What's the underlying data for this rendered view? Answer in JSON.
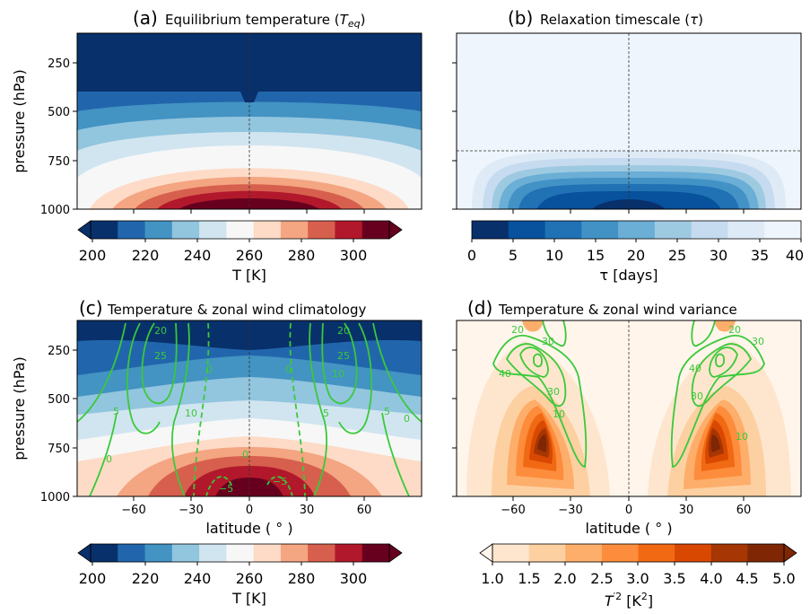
{
  "colors": {
    "rdbu": [
      "#08306b",
      "#2166ac",
      "#4393c3",
      "#92c5de",
      "#d1e5f0",
      "#f7f7f7",
      "#fddbc7",
      "#f4a582",
      "#d6604d",
      "#b2182b",
      "#67001f"
    ],
    "blues": [
      "#08306b",
      "#08519c",
      "#2171b5",
      "#4292c6",
      "#6baed6",
      "#9ecae1",
      "#c6dbef",
      "#deebf7",
      "#eff5fc"
    ],
    "oranges": [
      "#fff5eb",
      "#fee6ce",
      "#fdd0a2",
      "#fdae6b",
      "#fd8d3c",
      "#f16913",
      "#d94801",
      "#a63603",
      "#7f2704"
    ],
    "contour": "#3ac93a"
  },
  "chart_data": [
    {
      "id": "a",
      "type": "heatmap",
      "label": "(a)",
      "title": "Equilibrium temperature (",
      "title_math": "T",
      "title_sub": "eq",
      "ylabel": "pressure (hPa)",
      "yticks": [
        "250",
        "500",
        "750",
        "1000"
      ],
      "xticks": [],
      "xlabel": "",
      "colorbar": {
        "label": "T [K]",
        "ticks": [
          "200",
          "220",
          "240",
          "260",
          "280",
          "300"
        ],
        "extend": "both"
      }
    },
    {
      "id": "b",
      "type": "heatmap",
      "label": "(b)",
      "title": "Relaxation timescale (",
      "title_math": "τ",
      "title_sub": "",
      "ylabel": "",
      "yticks": [],
      "xticks": [],
      "xlabel": "",
      "colorbar": {
        "label": "τ [days]",
        "ticks": [
          "0",
          "5",
          "10",
          "15",
          "20",
          "25",
          "30",
          "35",
          "40"
        ],
        "extend": "neither"
      }
    },
    {
      "id": "c",
      "type": "heatmap",
      "label": "(c)",
      "title": "Temperature & zonal wind climatology",
      "ylabel": "pressure (hPa)",
      "yticks": [
        "250",
        "500",
        "750",
        "1000"
      ],
      "xticks": [
        "−60",
        "−30",
        "0",
        "30",
        "60"
      ],
      "xlabel": "latitude ( ° )",
      "contour_labels": [
        "20",
        "25",
        "0",
        "5",
        "10",
        "0",
        "5",
        "10",
        "20",
        "25",
        "0",
        "5",
        "0",
        "−5",
        "−5",
        "0"
      ],
      "colorbar": {
        "label": "T [K]",
        "ticks": [
          "200",
          "220",
          "240",
          "260",
          "280",
          "300"
        ],
        "extend": "both"
      }
    },
    {
      "id": "d",
      "type": "heatmap",
      "label": "(d)",
      "title": "Temperature & zonal wind variance",
      "ylabel": "",
      "yticks": [],
      "xticks": [
        "−60",
        "−30",
        "0",
        "30",
        "60"
      ],
      "xlabel": "latitude ( ° )",
      "contour_labels": [
        "20",
        "30",
        "40",
        "30",
        "10",
        "20",
        "30",
        "40",
        "30",
        "10"
      ],
      "colorbar": {
        "label": "T′² [K²]",
        "label_math": "T",
        "label_unit": "[K",
        "ticks": [
          "1.0",
          "1.5",
          "2.0",
          "2.5",
          "3.0",
          "3.5",
          "4.0",
          "4.5",
          "5.0"
        ],
        "extend": "both"
      }
    }
  ]
}
